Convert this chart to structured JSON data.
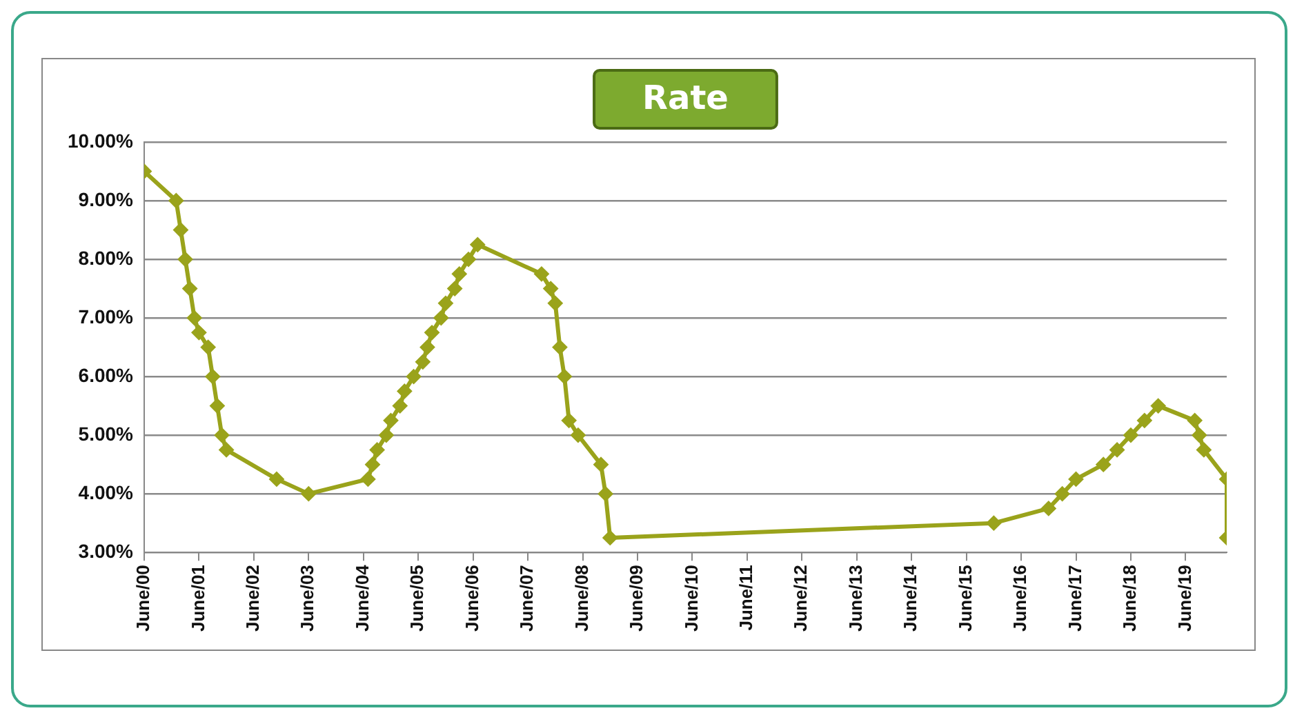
{
  "chart_data": {
    "type": "line",
    "title": "Rate",
    "marker": "diamond",
    "grid": "y",
    "legend": false,
    "x": [
      "2000-06",
      "2001-01",
      "2001-02",
      "2001-03",
      "2001-04",
      "2001-05",
      "2001-06",
      "2001-08",
      "2001-09",
      "2001-10",
      "2001-11",
      "2001-12",
      "2002-11",
      "2003-06",
      "2004-07",
      "2004-08",
      "2004-09",
      "2004-11",
      "2004-12",
      "2005-02",
      "2005-03",
      "2005-05",
      "2005-07",
      "2005-08",
      "2005-09",
      "2005-11",
      "2005-12",
      "2006-02",
      "2006-03",
      "2006-05",
      "2006-07",
      "2007-09",
      "2007-11",
      "2007-12",
      "2008-01",
      "2008-02",
      "2008-03",
      "2008-05",
      "2008-10",
      "2008-11",
      "2008-12",
      "2015-12",
      "2016-12",
      "2017-03",
      "2017-06",
      "2017-12",
      "2018-03",
      "2018-06",
      "2018-09",
      "2018-12",
      "2019-08",
      "2019-09",
      "2019-10",
      "2020-03",
      "2020-03"
    ],
    "series": [
      {
        "color": "#9aa31b",
        "values": [
          9.5,
          9.0,
          8.5,
          8.0,
          7.5,
          7.0,
          6.75,
          6.5,
          6.0,
          5.5,
          5.0,
          4.75,
          4.25,
          4.0,
          4.25,
          4.5,
          4.75,
          5.0,
          5.25,
          5.5,
          5.75,
          6.0,
          6.25,
          6.5,
          6.75,
          7.0,
          7.25,
          7.5,
          7.75,
          8.0,
          8.25,
          7.75,
          7.5,
          7.25,
          6.5,
          6.0,
          5.25,
          5.0,
          4.5,
          4.0,
          3.25,
          3.5,
          3.75,
          4.0,
          4.25,
          4.5,
          4.75,
          5.0,
          5.25,
          5.5,
          5.25,
          5.0,
          4.75,
          4.25,
          3.25
        ]
      }
    ],
    "ylim": [
      3,
      10
    ],
    "yticks": [
      {
        "value": 3,
        "label": "3.00%"
      },
      {
        "value": 4,
        "label": "4.00%"
      },
      {
        "value": 5,
        "label": "5.00%"
      },
      {
        "value": 6,
        "label": "6.00%"
      },
      {
        "value": 7,
        "label": "7.00%"
      },
      {
        "value": 8,
        "label": "8.00%"
      },
      {
        "value": 9,
        "label": "9.00%"
      },
      {
        "value": 10,
        "label": "10.00%"
      }
    ],
    "xlim": [
      "2000-06",
      "2020-03"
    ],
    "xticks": [
      {
        "value": "2000-06",
        "label": "June/00"
      },
      {
        "value": "2001-06",
        "label": "June/01"
      },
      {
        "value": "2002-06",
        "label": "June/02"
      },
      {
        "value": "2003-06",
        "label": "June/03"
      },
      {
        "value": "2004-06",
        "label": "June/04"
      },
      {
        "value": "2005-06",
        "label": "June/05"
      },
      {
        "value": "2006-06",
        "label": "June/06"
      },
      {
        "value": "2007-06",
        "label": "June/07"
      },
      {
        "value": "2008-06",
        "label": "June/08"
      },
      {
        "value": "2009-06",
        "label": "June/09"
      },
      {
        "value": "2010-06",
        "label": "June/10"
      },
      {
        "value": "2011-06",
        "label": "June/11"
      },
      {
        "value": "2012-06",
        "label": "June/12"
      },
      {
        "value": "2013-06",
        "label": "June/13"
      },
      {
        "value": "2014-06",
        "label": "June/14"
      },
      {
        "value": "2015-06",
        "label": "June/15"
      },
      {
        "value": "2016-06",
        "label": "June/16"
      },
      {
        "value": "2017-06",
        "label": "June/17"
      },
      {
        "value": "2018-06",
        "label": "June/18"
      },
      {
        "value": "2019-06",
        "label": "June/19"
      }
    ]
  }
}
